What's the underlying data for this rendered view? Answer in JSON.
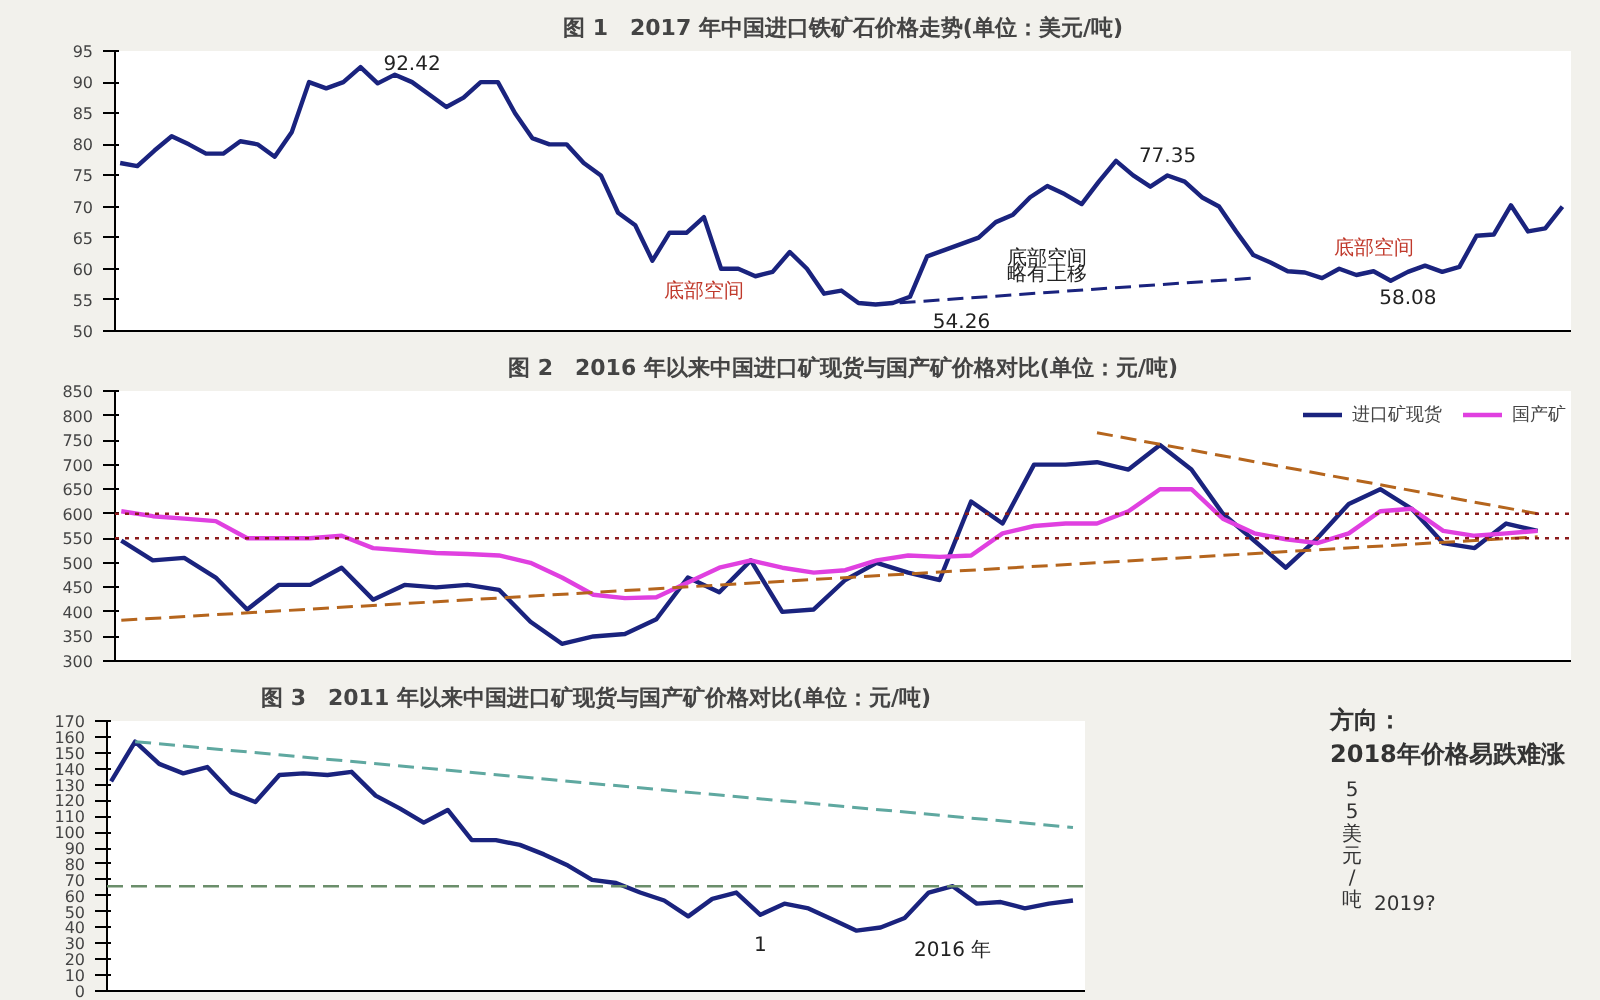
{
  "chart_data": [
    {
      "type": "line",
      "title": "图 1　2017 年中国进口铁矿石价格走势(单位：美元/吨)",
      "categories": [
        null,
        null,
        null,
        null,
        null,
        null,
        null,
        null,
        null,
        null,
        null,
        null,
        null,
        null,
        null,
        null,
        null,
        null,
        null,
        null,
        null,
        null,
        null,
        null,
        null,
        null,
        null,
        null,
        null,
        null,
        null,
        null,
        null,
        null,
        null,
        null,
        null,
        null,
        null,
        null,
        null,
        null,
        null,
        null,
        null,
        null,
        null,
        null,
        null,
        null,
        null,
        null,
        null,
        null,
        null,
        null,
        null,
        null,
        null,
        null,
        null,
        null,
        null,
        null,
        null,
        null,
        null,
        null,
        null,
        null,
        null,
        null,
        null,
        null,
        null,
        null,
        null,
        null,
        null,
        null,
        null,
        null,
        null,
        null,
        null
      ],
      "series": [
        {
          "color": "#1a237e",
          "values": [
            77,
            76.5,
            79,
            81.3,
            80,
            78.5,
            78.5,
            80.5,
            80,
            78,
            82,
            90,
            89,
            90,
            92.42,
            89.8,
            91.2,
            90,
            88,
            86,
            87.5,
            90,
            90,
            85,
            81,
            80,
            80,
            77,
            75,
            69,
            67,
            61.3,
            65.8,
            65.8,
            68.3,
            60,
            60,
            58.8,
            59.5,
            62.7,
            60,
            56,
            56.5,
            54.5,
            54.26,
            54.5,
            55.5,
            62,
            63,
            64,
            65,
            67.5,
            68.7,
            71.5,
            73.3,
            72,
            70.4,
            74,
            77.35,
            75,
            73.2,
            75,
            74,
            71.5,
            70,
            66,
            62.2,
            61,
            59.6,
            59.4,
            58.5,
            60,
            59,
            59.6,
            58.08,
            59.5,
            60.5,
            59.5,
            60.3,
            65.3,
            65.5,
            70.2,
            66,
            66.5,
            70
          ]
        },
        {
          "color": "#1a237e",
          "line_style": "dashed",
          "values": [
            null,
            null,
            null,
            null,
            null,
            null,
            null,
            null,
            null,
            null,
            null,
            null,
            null,
            null,
            null,
            null,
            null,
            null,
            null,
            null,
            null,
            null,
            null,
            null,
            null,
            null,
            null,
            null,
            null,
            null,
            null,
            null,
            null,
            null,
            null,
            null,
            null,
            null,
            null,
            null,
            null,
            null,
            null,
            null,
            54.26,
            null,
            null,
            null,
            null,
            null,
            null,
            null,
            null,
            null,
            null,
            null,
            null,
            null,
            null,
            null,
            null,
            null,
            null,
            null,
            null,
            null,
            58.5,
            null,
            null,
            null,
            null,
            null,
            null,
            null,
            null,
            null,
            null,
            null,
            null,
            null,
            null,
            null,
            null,
            null,
            null
          ]
        }
      ],
      "ylim": [
        50,
        95
      ],
      "yticks": [
        50,
        55,
        60,
        65,
        70,
        75,
        80,
        85,
        90,
        95
      ],
      "grid": false,
      "annotations": [
        "92.42",
        "77.35",
        "54.26",
        "58.08",
        "底部空间",
        "底部空间",
        "略有上移",
        "底部空间"
      ]
    },
    {
      "type": "line",
      "title": "图 2　2016 年以来中国进口矿现货与国产矿价格对比(单位：元/吨)",
      "categories": [
        null,
        null,
        null,
        null,
        null,
        null,
        null,
        null,
        null,
        null,
        null,
        null,
        null,
        null,
        null,
        null,
        null,
        null,
        null,
        null,
        null,
        null,
        null,
        null,
        null,
        null,
        null,
        null,
        null,
        null,
        null,
        null,
        null,
        null,
        null,
        null,
        null,
        null,
        null,
        null,
        null,
        null,
        null,
        null,
        null,
        null
      ],
      "series": [
        {
          "name": "进口矿现货",
          "color": "#1a237e",
          "values": [
            545,
            505,
            510,
            470,
            405,
            455,
            455,
            490,
            425,
            455,
            450,
            455,
            445,
            380,
            335,
            350,
            355,
            385,
            470,
            440,
            505,
            400,
            405,
            465,
            500,
            480,
            465,
            625,
            580,
            700,
            700,
            705,
            690,
            740,
            690,
            600,
            545,
            490,
            550,
            620,
            650,
            610,
            540,
            530,
            580,
            565
          ]
        },
        {
          "name": "国产矿",
          "color": "#e040e0",
          "values": [
            605,
            595,
            590,
            585,
            550,
            550,
            550,
            555,
            530,
            525,
            520,
            518,
            515,
            500,
            470,
            435,
            428,
            430,
            460,
            490,
            505,
            490,
            480,
            485,
            505,
            515,
            512,
            515,
            560,
            575,
            580,
            580,
            605,
            650,
            650,
            590,
            560,
            548,
            540,
            560,
            605,
            610,
            565,
            555,
            560,
            565
          ]
        },
        {
          "color": "#b5651d",
          "line_style": "dashed",
          "values": [
            383,
            null,
            null,
            null,
            null,
            null,
            null,
            null,
            null,
            null,
            null,
            null,
            null,
            null,
            null,
            null,
            null,
            null,
            null,
            null,
            null,
            null,
            null,
            null,
            null,
            null,
            null,
            null,
            null,
            null,
            null,
            null,
            null,
            null,
            null,
            null,
            null,
            null,
            null,
            null,
            null,
            null,
            null,
            null,
            null,
            553
          ]
        },
        {
          "color": "#b5651d",
          "line_style": "dashed",
          "values": [
            null,
            null,
            null,
            null,
            null,
            null,
            null,
            null,
            null,
            null,
            null,
            null,
            null,
            null,
            null,
            null,
            null,
            null,
            null,
            null,
            null,
            null,
            null,
            null,
            null,
            null,
            null,
            null,
            null,
            null,
            null,
            765,
            null,
            null,
            null,
            null,
            null,
            null,
            null,
            null,
            null,
            null,
            null,
            null,
            null,
            600
          ]
        }
      ],
      "ylim": [
        300,
        850
      ],
      "yticks": [
        300,
        350,
        400,
        450,
        500,
        550,
        600,
        650,
        700,
        750,
        800,
        850
      ],
      "grid": false,
      "legend": "top right",
      "ref_lines": [
        {
          "axis": "y",
          "value": 600,
          "color": "#8b1a1a",
          "line_style": "dotted"
        },
        {
          "axis": "y",
          "value": 550,
          "color": "#8b1a1a",
          "line_style": "dotted"
        }
      ]
    },
    {
      "type": "line",
      "title": "图 3　2011 年以来中国进口矿现货与国产矿价格对比(单位：元/吨)",
      "categories": [
        null,
        null,
        null,
        null,
        null,
        null,
        null,
        null,
        null,
        null,
        null,
        null,
        null,
        null,
        null,
        null,
        null,
        null,
        null,
        null,
        null,
        null,
        null,
        null,
        null,
        null,
        null,
        null,
        null,
        null,
        null,
        null,
        null,
        null,
        null,
        null,
        null,
        null,
        null,
        null,
        null
      ],
      "series": [
        {
          "color": "#1a237e",
          "values": [
            132,
            157,
            143,
            137,
            141,
            125,
            119,
            136,
            137,
            136,
            138,
            123,
            115,
            106,
            114,
            95,
            95,
            92,
            86,
            79,
            70,
            68,
            62,
            57,
            47,
            58,
            62,
            48,
            55,
            52,
            45,
            38,
            40,
            46,
            62,
            66,
            55,
            56,
            52,
            55,
            57
          ]
        },
        {
          "color": "#5fa8a0",
          "line_style": "dashed",
          "values": [
            null,
            157,
            null,
            null,
            null,
            null,
            null,
            null,
            null,
            null,
            null,
            null,
            null,
            null,
            null,
            null,
            null,
            null,
            null,
            null,
            null,
            null,
            null,
            null,
            null,
            null,
            null,
            null,
            null,
            null,
            null,
            null,
            null,
            null,
            null,
            null,
            null,
            null,
            null,
            null,
            103
          ]
        }
      ],
      "ylim": [
        0,
        170
      ],
      "yticks": [
        0,
        10,
        20,
        30,
        40,
        50,
        60,
        70,
        80,
        90,
        100,
        110,
        120,
        130,
        140,
        150,
        160,
        170
      ],
      "grid": false,
      "ref_lines": [
        {
          "axis": "y",
          "value": 66,
          "color": "#6b8e6b",
          "line_style": "dashed"
        }
      ],
      "annotations": [
        "1",
        "2016 年",
        "方向：",
        "2018年价格易跌难涨",
        "55美元/吨",
        "2019?"
      ]
    }
  ]
}
